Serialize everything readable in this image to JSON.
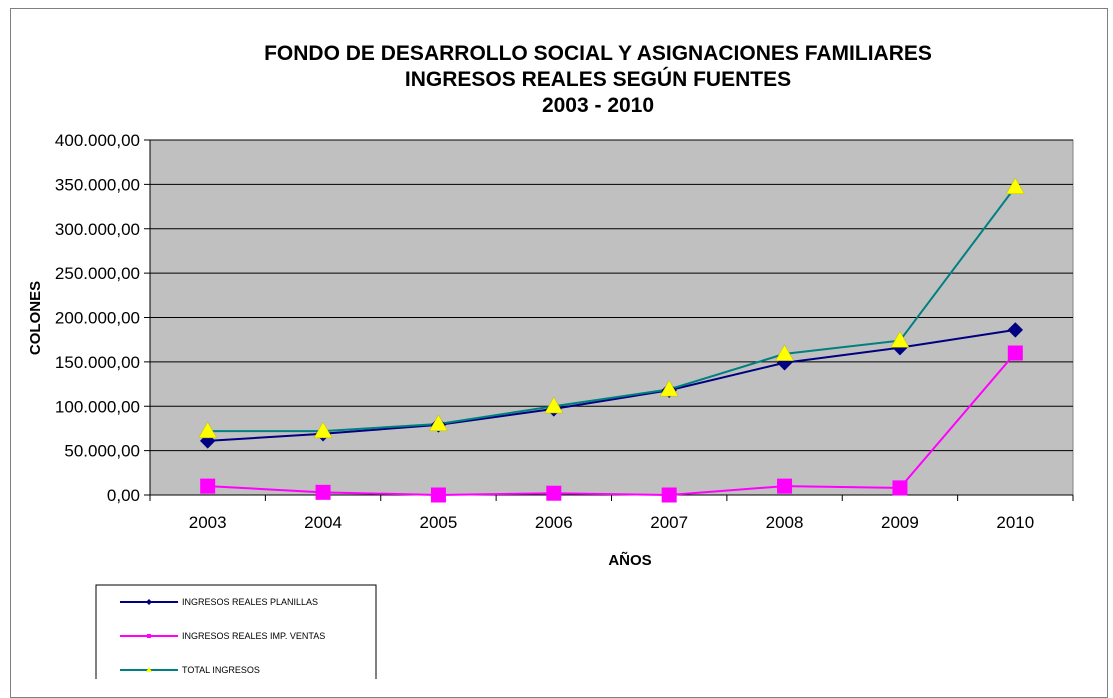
{
  "chart_data": {
    "type": "line",
    "title": [
      "FONDO DE DESARROLLO SOCIAL Y ASIGNACIONES FAMILIARES",
      "INGRESOS REALES SEGÚN FUENTES",
      "2003 - 2010"
    ],
    "xlabel": "AÑOS",
    "ylabel": "COLONES",
    "ylim": [
      0,
      400000
    ],
    "yticks": [
      "0,00",
      "50.000,00",
      "100.000,00",
      "150.000,00",
      "200.000,00",
      "250.000,00",
      "300.000,00",
      "350.000,00",
      "400.000,00"
    ],
    "categories": [
      "2003",
      "2004",
      "2005",
      "2006",
      "2007",
      "2008",
      "2009",
      "2010"
    ],
    "grid": true,
    "plot_background": "#c0c0c0",
    "legend_position": "bottom-left",
    "series": [
      {
        "name": "INGRESOS REALES PLANILLAS",
        "color": "#000080",
        "marker": "diamond",
        "values": [
          61000,
          69000,
          79000,
          97000,
          118000,
          149000,
          166000,
          186000
        ]
      },
      {
        "name": "INGRESOS REALES IMP. VENTAS",
        "color": "#ff00ff",
        "marker": "square",
        "values": [
          10000,
          3000,
          0,
          2000,
          0,
          10000,
          8000,
          160000
        ]
      },
      {
        "name": "TOTAL INGRESOS",
        "color": "#008080",
        "marker": "triangle",
        "marker_color": "#ffff00",
        "values": [
          72000,
          72000,
          80000,
          100000,
          119000,
          159000,
          174000,
          347000
        ]
      }
    ]
  }
}
